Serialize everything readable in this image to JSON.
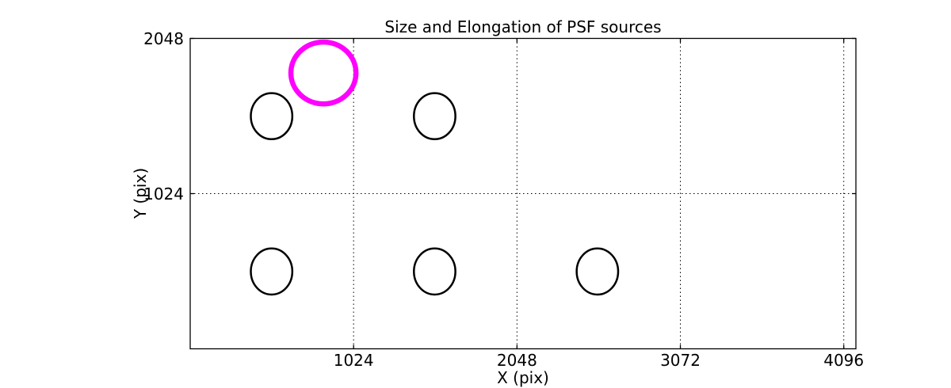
{
  "chart_data": {
    "type": "scatter",
    "title": "Size and Elongation of PSF sources",
    "xlabel": "X (pix)",
    "ylabel": "Y (pix)",
    "xlim": [
      0,
      4172
    ],
    "ylim": [
      0,
      2048
    ],
    "xticks": [
      1024,
      2048,
      3072,
      4096
    ],
    "yticks": [
      1024,
      2048
    ],
    "grid": {
      "on": true,
      "style": "dotted",
      "color": "#000000"
    },
    "legend": "none",
    "background_color": "#ffffff",
    "frame_color": "#000000",
    "highlight_color": "#ff00ff",
    "source_color": "#000000",
    "sources": [
      {
        "x": 510,
        "y": 1535,
        "rx": 130,
        "ry": 152,
        "color": "#000000",
        "lw": 2.5,
        "role": "psf-source-ellipse"
      },
      {
        "x": 1532,
        "y": 1535,
        "rx": 130,
        "ry": 152,
        "color": "#000000",
        "lw": 2.5,
        "role": "psf-source-ellipse"
      },
      {
        "x": 510,
        "y": 510,
        "rx": 130,
        "ry": 152,
        "color": "#000000",
        "lw": 2.5,
        "role": "psf-source-ellipse"
      },
      {
        "x": 1532,
        "y": 510,
        "rx": 130,
        "ry": 152,
        "color": "#000000",
        "lw": 2.5,
        "role": "psf-source-ellipse"
      },
      {
        "x": 2552,
        "y": 510,
        "rx": 130,
        "ry": 152,
        "color": "#000000",
        "lw": 2.5,
        "role": "psf-source-ellipse"
      },
      {
        "x": 835,
        "y": 1820,
        "rx": 204,
        "ry": 204,
        "color": "#ff00ff",
        "lw": 6.5,
        "role": "highlighted-psf-ellipse"
      }
    ]
  }
}
